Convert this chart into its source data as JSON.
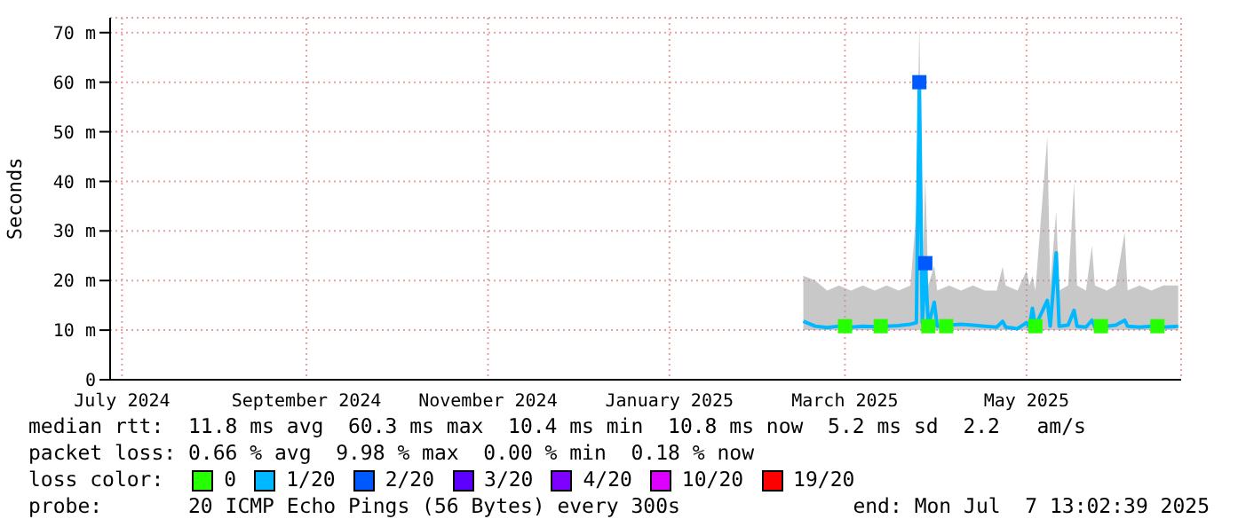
{
  "chart_data": {
    "type": "line",
    "ylabel": "Seconds",
    "legend_title": "loss color:",
    "legend": "bottom",
    "grid": true,
    "xlim": [
      "2024-07-12",
      "2025-07-07"
    ],
    "xticks": [
      {
        "value": "2024-07-16",
        "label": "July 2024"
      },
      {
        "value": "2024-09-16",
        "label": "September 2024"
      },
      {
        "value": "2024-11-16",
        "label": "November 2024"
      },
      {
        "value": "2025-01-16",
        "label": "January 2025"
      },
      {
        "value": "2025-03-16",
        "label": "March 2025"
      },
      {
        "value": "2025-05-16",
        "label": "May 2025"
      }
    ],
    "ylim": [
      0,
      73
    ],
    "yticks": [
      0,
      {
        "value": 10,
        "label": "10 m"
      },
      {
        "value": 20,
        "label": "20 m"
      },
      {
        "value": 30,
        "label": "30 m"
      },
      {
        "value": 40,
        "label": "40 m"
      },
      {
        "value": 50,
        "label": "50 m"
      },
      {
        "value": 60,
        "label": "60 m"
      },
      {
        "value": 70,
        "label": "70 m"
      }
    ],
    "series": [
      {
        "name": "0",
        "type": "scatter",
        "marker": "square",
        "color": "#26ff00",
        "x": [
          "2025-03-16",
          "2025-03-28",
          "2025-04-13",
          "2025-04-19",
          "2025-05-19",
          "2025-06-10",
          "2025-06-29"
        ],
        "values": [
          10.8,
          10.8,
          10.8,
          10.8,
          10.8,
          10.8,
          10.8
        ]
      },
      {
        "name": "1/20",
        "color": "#00b8ff",
        "x": [
          "2025-03-02",
          "2025-03-06",
          "2025-03-10",
          "2025-03-14",
          "2025-03-18",
          "2025-03-22",
          "2025-03-26",
          "2025-03-30",
          "2025-04-03",
          "2025-04-07",
          "2025-04-09",
          "2025-04-10",
          "2025-04-11",
          "2025-04-12",
          "2025-04-13",
          "2025-04-15",
          "2025-04-16",
          "2025-04-20",
          "2025-04-24",
          "2025-04-28",
          "2025-05-02",
          "2025-05-06",
          "2025-05-08",
          "2025-05-09",
          "2025-05-13",
          "2025-05-16",
          "2025-05-17",
          "2025-05-18",
          "2025-05-19",
          "2025-05-23",
          "2025-05-24",
          "2025-05-26",
          "2025-05-27",
          "2025-05-30",
          "2025-06-01",
          "2025-06-02",
          "2025-06-05",
          "2025-06-07",
          "2025-06-08",
          "2025-06-12",
          "2025-06-15",
          "2025-06-18",
          "2025-06-19",
          "2025-06-23",
          "2025-06-27",
          "2025-07-01",
          "2025-07-06"
        ],
        "values": [
          11.8,
          10.8,
          10.5,
          10.8,
          10.6,
          10.8,
          10.7,
          10.8,
          10.9,
          11.2,
          11.5,
          60,
          11.5,
          23.5,
          10.8,
          15.6,
          10.8,
          11,
          11.2,
          11,
          10.8,
          10.6,
          11.8,
          10.6,
          10.3,
          11.5,
          10.6,
          14.4,
          10.8,
          16,
          10.8,
          25.6,
          10.8,
          11,
          14,
          10.8,
          10.6,
          12,
          10.6,
          10.8,
          11,
          12,
          10.8,
          10.6,
          10.8,
          10.6,
          10.8
        ],
        "lower": [
          10,
          10,
          10,
          10,
          10,
          10,
          10,
          10,
          10,
          10,
          10,
          10,
          10,
          10,
          10,
          10,
          10,
          10,
          10,
          10,
          10,
          10,
          10,
          10,
          10,
          10,
          10,
          10,
          10,
          10,
          10,
          10,
          10,
          10,
          10,
          10,
          10,
          10,
          10,
          10,
          10,
          10,
          10,
          10,
          10,
          10,
          10
        ],
        "upper": [
          21,
          20,
          18,
          19,
          18,
          19,
          18,
          19,
          18,
          19,
          34,
          72,
          19,
          41,
          19,
          23,
          18,
          19,
          18,
          19,
          18,
          18,
          22.8,
          19,
          18,
          22,
          19,
          21,
          18,
          49,
          19,
          34,
          18,
          19,
          39.7,
          19,
          18,
          27,
          19,
          18,
          19,
          29.7,
          18,
          19,
          18,
          19,
          19
        ]
      },
      {
        "name": "2/20",
        "type": "scatter",
        "marker": "square",
        "color": "#0059ff",
        "x": [
          "2025-04-10",
          "2025-04-12"
        ],
        "values": [
          60,
          23.5
        ]
      },
      {
        "name": "3/20",
        "type": "scatter",
        "marker": "square",
        "color": "#5e00ff"
      },
      {
        "name": "4/20",
        "type": "scatter",
        "marker": "square",
        "color": "#7e00ff"
      },
      {
        "name": "10/20",
        "type": "scatter",
        "marker": "square",
        "color": "#dd00ff"
      },
      {
        "name": "19/20",
        "type": "scatter",
        "marker": "square",
        "color": "#ff0000"
      }
    ],
    "annotations": [
      "median rtt:  11.8 ms avg  60.3 ms max  10.4 ms min  10.8 ms now  5.2 ms sd  2.2   am/s",
      "packet loss: 0.66 % avg  9.98 % max  0.00 % min  0.18 % now",
      "probe:       20 ICMP Echo Pings (56 Bytes) every 300s",
      "end: Mon Jul  7 13:02:39 2025"
    ]
  }
}
